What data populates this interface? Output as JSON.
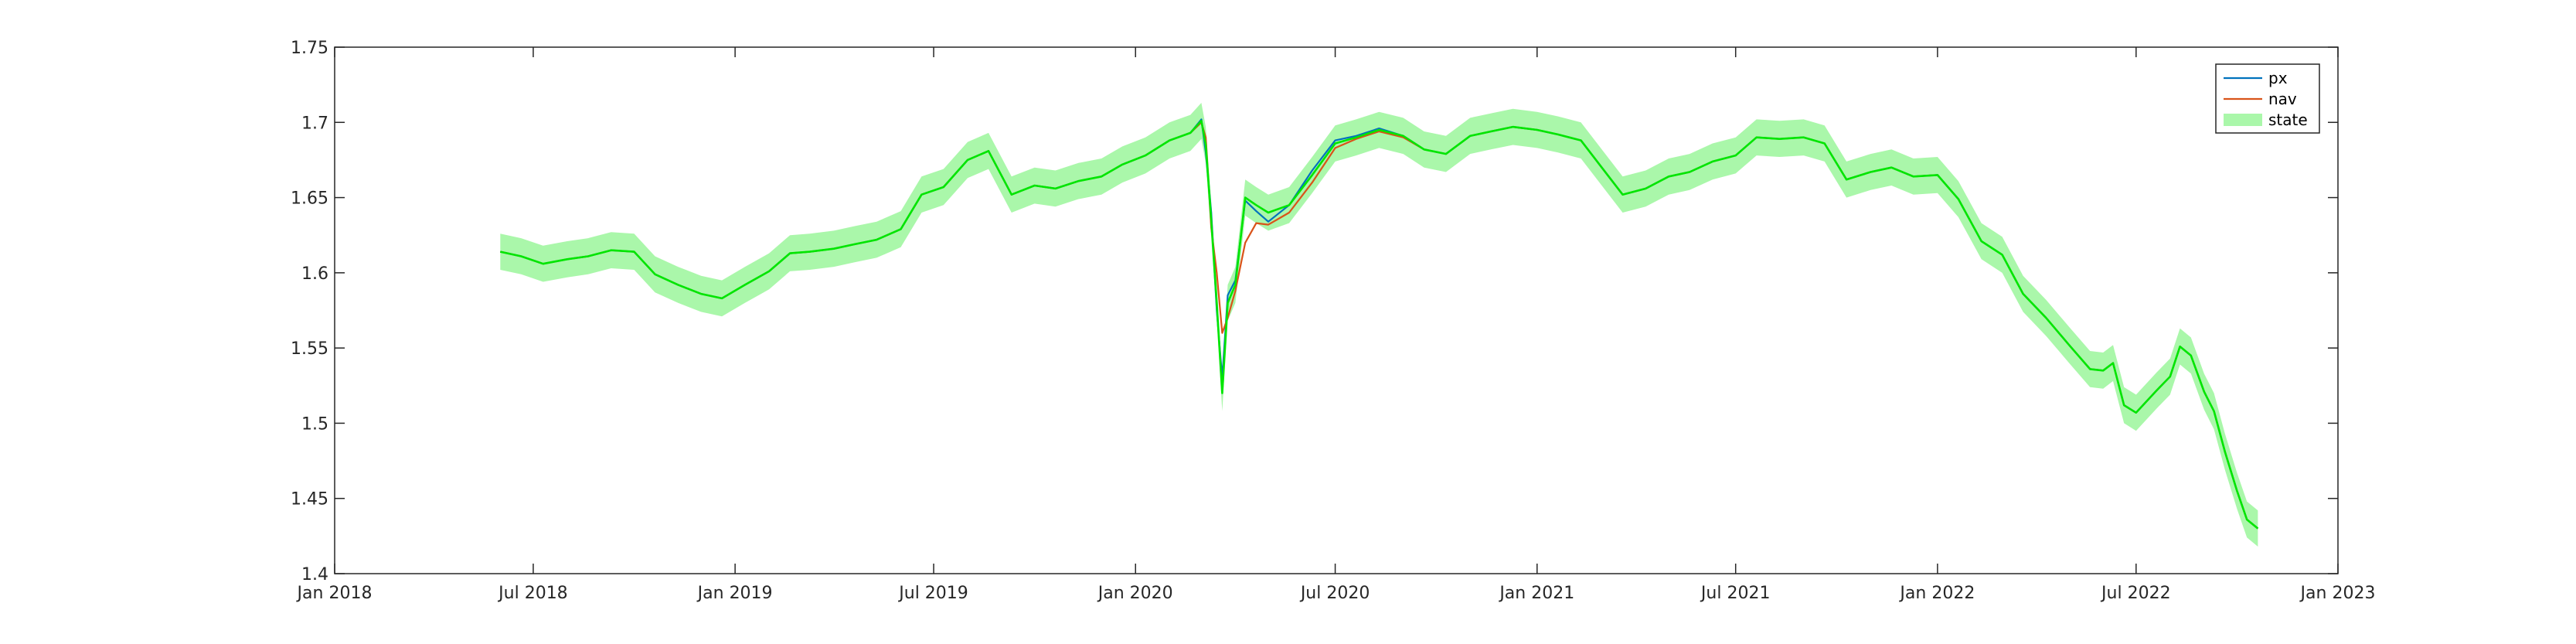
{
  "chart_data": {
    "type": "line",
    "title": "",
    "xlabel": "",
    "ylabel": "",
    "xlim": [
      "2018-01-01",
      "2023-01-01"
    ],
    "ylim": [
      1.4,
      1.75
    ],
    "x_ticks": [
      "2018-01-01",
      "2018-07-01",
      "2019-01-01",
      "2019-07-01",
      "2020-01-01",
      "2020-07-01",
      "2021-01-01",
      "2021-07-01",
      "2022-01-01",
      "2022-07-01",
      "2023-01-01"
    ],
    "x_tick_labels": [
      "Jan 2018",
      "Jul 2018",
      "Jan 2019",
      "Jul 2019",
      "Jan 2020",
      "Jul 2020",
      "Jan 2021",
      "Jul 2021",
      "Jan 2022",
      "Jul 2022",
      "Jan 2023"
    ],
    "y_ticks": [
      1.4,
      1.45,
      1.5,
      1.55,
      1.6,
      1.65,
      1.7,
      1.75
    ],
    "y_tick_labels": [
      "1.4",
      "1.45",
      "1.5",
      "1.55",
      "1.6",
      "1.65",
      "1.7",
      "1.75"
    ],
    "grid": false,
    "legend": {
      "placement": "top-right",
      "entries": [
        "px",
        "nav",
        "state"
      ]
    },
    "colors": {
      "px": "#0072BD",
      "nav": "#D95319",
      "state_line": "#00E600",
      "state_band": "#AAF7AA",
      "axis": "#262626"
    },
    "x": [
      "2018-06-01",
      "2018-06-20",
      "2018-07-10",
      "2018-08-01",
      "2018-08-20",
      "2018-09-10",
      "2018-10-01",
      "2018-10-20",
      "2018-11-10",
      "2018-12-01",
      "2018-12-20",
      "2019-01-10",
      "2019-02-01",
      "2019-02-20",
      "2019-03-10",
      "2019-04-01",
      "2019-04-20",
      "2019-05-10",
      "2019-06-01",
      "2019-06-20",
      "2019-07-10",
      "2019-08-01",
      "2019-08-20",
      "2019-09-10",
      "2019-10-01",
      "2019-10-20",
      "2019-11-10",
      "2019-12-01",
      "2019-12-20",
      "2020-01-10",
      "2020-02-01",
      "2020-02-20",
      "2020-03-01",
      "2020-03-05",
      "2020-03-10",
      "2020-03-15",
      "2020-03-20",
      "2020-03-25",
      "2020-04-01",
      "2020-04-10",
      "2020-04-20",
      "2020-05-01",
      "2020-05-20",
      "2020-06-10",
      "2020-07-01",
      "2020-07-20",
      "2020-08-10",
      "2020-09-01",
      "2020-09-20",
      "2020-10-10",
      "2020-11-01",
      "2020-11-20",
      "2020-12-10",
      "2021-01-01",
      "2021-01-20",
      "2021-02-10",
      "2021-03-01",
      "2021-03-20",
      "2021-04-10",
      "2021-05-01",
      "2021-05-20",
      "2021-06-10",
      "2021-07-01",
      "2021-07-20",
      "2021-08-10",
      "2021-09-01",
      "2021-09-20",
      "2021-10-10",
      "2021-11-01",
      "2021-11-20",
      "2021-12-10",
      "2022-01-01",
      "2022-01-20",
      "2022-02-10",
      "2022-03-01",
      "2022-03-20",
      "2022-04-10",
      "2022-05-01",
      "2022-05-20",
      "2022-06-01",
      "2022-06-10",
      "2022-06-20",
      "2022-07-01",
      "2022-07-20",
      "2022-08-01",
      "2022-08-10",
      "2022-08-20",
      "2022-09-01",
      "2022-09-10",
      "2022-09-20",
      "2022-10-01",
      "2022-10-10",
      "2022-10-20"
    ],
    "series": [
      {
        "name": "px",
        "values": [
          1.614,
          1.611,
          1.606,
          1.609,
          1.611,
          1.615,
          1.614,
          1.599,
          1.592,
          1.586,
          1.583,
          1.592,
          1.601,
          1.613,
          1.614,
          1.616,
          1.619,
          1.622,
          1.629,
          1.652,
          1.657,
          1.675,
          1.681,
          1.652,
          1.658,
          1.656,
          1.661,
          1.664,
          1.672,
          1.678,
          1.688,
          1.693,
          1.702,
          1.68,
          1.64,
          1.575,
          1.53,
          1.585,
          1.595,
          1.648,
          1.641,
          1.634,
          1.645,
          1.668,
          1.688,
          1.691,
          1.696,
          1.691,
          1.682,
          1.679,
          1.691,
          1.694,
          1.697,
          1.695,
          1.692,
          1.688,
          1.67,
          1.652,
          1.656,
          1.664,
          1.667,
          1.674,
          1.678,
          1.69,
          1.689,
          1.69,
          1.686,
          1.662,
          1.667,
          1.67,
          1.664,
          1.665,
          1.649,
          1.621,
          1.612,
          1.586,
          1.57,
          1.552,
          1.536,
          1.535,
          1.54,
          1.512,
          1.507,
          1.522,
          1.531,
          1.551,
          1.545,
          1.521,
          1.508,
          1.481,
          1.455,
          1.436,
          1.43
        ]
      },
      {
        "name": "nav",
        "values": [
          1.614,
          1.611,
          1.606,
          1.609,
          1.611,
          1.615,
          1.614,
          1.599,
          1.592,
          1.586,
          1.583,
          1.592,
          1.601,
          1.613,
          1.614,
          1.616,
          1.619,
          1.622,
          1.629,
          1.652,
          1.657,
          1.675,
          1.681,
          1.652,
          1.658,
          1.656,
          1.661,
          1.664,
          1.672,
          1.678,
          1.688,
          1.693,
          1.7,
          1.69,
          1.63,
          1.6,
          1.56,
          1.57,
          1.588,
          1.62,
          1.633,
          1.632,
          1.64,
          1.66,
          1.683,
          1.689,
          1.694,
          1.69,
          1.682,
          1.679,
          1.691,
          1.694,
          1.697,
          1.695,
          1.692,
          1.688,
          1.67,
          1.652,
          1.656,
          1.664,
          1.667,
          1.674,
          1.678,
          1.69,
          1.689,
          1.69,
          1.686,
          1.662,
          1.667,
          1.67,
          1.664,
          1.665,
          1.649,
          1.621,
          1.612,
          1.586,
          1.57,
          1.552,
          1.536,
          1.535,
          1.54,
          1.512,
          1.507,
          1.522,
          1.531,
          1.551,
          1.545,
          1.521,
          1.508,
          1.481,
          1.455,
          1.436,
          1.43
        ]
      },
      {
        "name": "state",
        "values": [
          1.614,
          1.611,
          1.606,
          1.609,
          1.611,
          1.615,
          1.614,
          1.599,
          1.592,
          1.586,
          1.583,
          1.592,
          1.601,
          1.613,
          1.614,
          1.616,
          1.619,
          1.622,
          1.629,
          1.652,
          1.657,
          1.675,
          1.681,
          1.652,
          1.658,
          1.656,
          1.661,
          1.664,
          1.672,
          1.678,
          1.688,
          1.693,
          1.701,
          1.685,
          1.635,
          1.58,
          1.52,
          1.58,
          1.592,
          1.65,
          1.645,
          1.64,
          1.645,
          1.665,
          1.686,
          1.69,
          1.695,
          1.691,
          1.682,
          1.679,
          1.691,
          1.694,
          1.697,
          1.695,
          1.692,
          1.688,
          1.67,
          1.652,
          1.656,
          1.664,
          1.667,
          1.674,
          1.678,
          1.69,
          1.689,
          1.69,
          1.686,
          1.662,
          1.667,
          1.67,
          1.664,
          1.665,
          1.649,
          1.621,
          1.612,
          1.586,
          1.57,
          1.552,
          1.536,
          1.535,
          1.54,
          1.512,
          1.507,
          1.522,
          1.531,
          1.551,
          1.545,
          1.521,
          1.508,
          1.481,
          1.455,
          1.436,
          1.43
        ],
        "band_halfwidth": 0.012
      }
    ]
  }
}
